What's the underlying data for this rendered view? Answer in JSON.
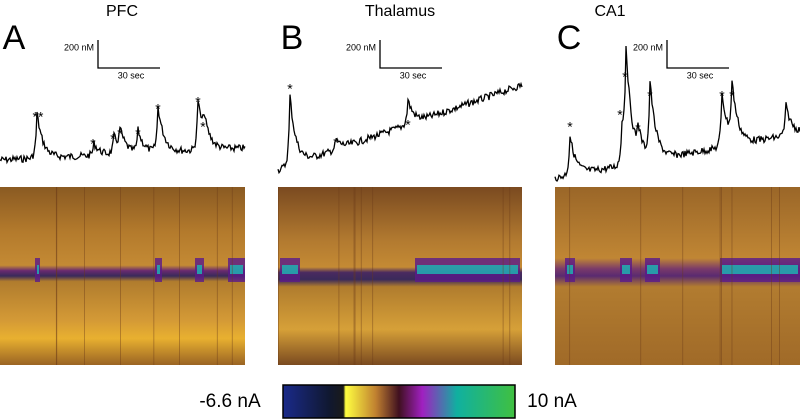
{
  "panels": [
    {
      "letter": "A",
      "title": "PFC",
      "scale_y": "200 nM",
      "scale_x": "30 sec",
      "markers": [
        "**",
        "*",
        "*",
        "*",
        "*",
        "*",
        "*",
        "*"
      ]
    },
    {
      "letter": "B",
      "title": "Thalamus",
      "scale_y": "200 nM",
      "scale_x": "30 sec",
      "markers": [
        "*",
        "*",
        "*"
      ]
    },
    {
      "letter": "C",
      "title": "CA1",
      "scale_y": "200 nM",
      "scale_x": "30 sec",
      "markers": [
        "*",
        "*",
        "*",
        "*",
        "*",
        "*",
        "*"
      ]
    }
  ],
  "colorbar": {
    "min_label": "-6.6 nA",
    "max_label": "10 nA"
  }
}
